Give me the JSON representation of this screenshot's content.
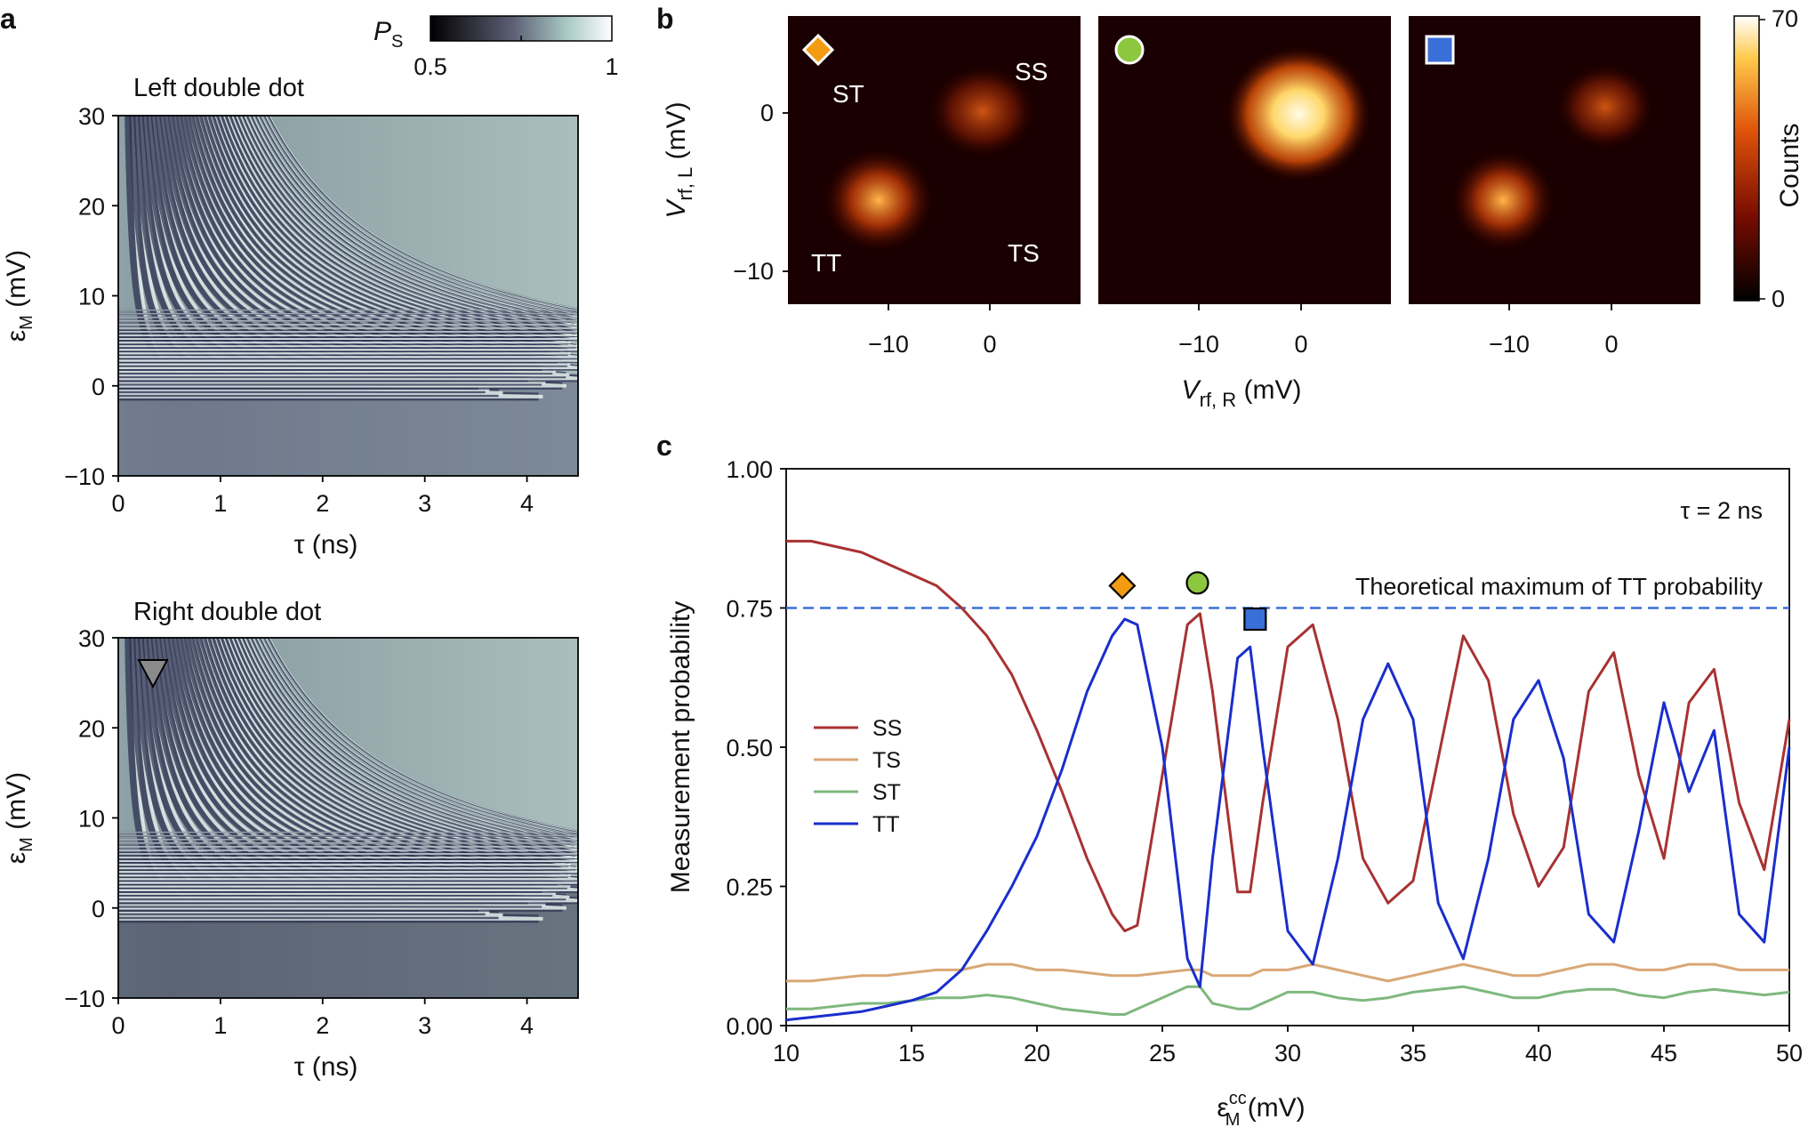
{
  "panel_labels": {
    "a": "a",
    "b": "b",
    "c": "c"
  },
  "colorbar_ps": {
    "symbol": "P",
    "subscript": "S",
    "min_label": "0.5",
    "max_label": "1"
  },
  "panel_a": {
    "top_title": "Left double dot",
    "bottom_title": "Right double dot",
    "xlabel": "τ (ns)",
    "ylabel": "ε",
    "ylabel_sub": "M",
    "ylabel_unit": " (mV)",
    "xticks": [
      "0",
      "1",
      "2",
      "3",
      "4"
    ],
    "yticks": [
      "30",
      "20",
      "10",
      "0",
      "−10"
    ]
  },
  "panel_b": {
    "labels": {
      "ss": "SS",
      "st": "ST",
      "tt": "TT",
      "ts": "TS"
    },
    "ylabel": "V",
    "ylabel_sub": "rf, L",
    "ylabel_unit": " (mV)",
    "xlabel": "V",
    "xlabel_sub": "rf, R",
    "xlabel_unit": " (mV)",
    "yticks": [
      "0",
      "−10"
    ],
    "xticks": [
      "−10",
      "0"
    ],
    "colorbar_label": "Counts",
    "colorbar_ticks": [
      "70",
      "0"
    ],
    "marker_colors": {
      "diamond": "#f39c12",
      "circle": "#8dc63f",
      "square": "#3a6fd8"
    }
  },
  "chart_data": {
    "type": "line",
    "title": "",
    "xlabel": "ε",
    "xlabel_sup": "cc",
    "xlabel_sub": "M",
    "xlabel_unit": " (mV)",
    "ylabel": "Measurement probability",
    "xlim": [
      10,
      50
    ],
    "ylim": [
      0,
      1
    ],
    "xticks": [
      "10",
      "15",
      "20",
      "25",
      "30",
      "35",
      "40",
      "45",
      "50"
    ],
    "yticks": [
      "0.00",
      "0.25",
      "0.50",
      "0.75",
      "1.00"
    ],
    "annotation_tau": "τ = 2 ns",
    "reference_line": {
      "y": 0.75,
      "label": "Theoretical maximum of TT probability",
      "color": "#3a6fd8"
    },
    "markers": [
      {
        "shape": "diamond",
        "x": 23.4,
        "y": 0.79,
        "color": "#f39c12"
      },
      {
        "shape": "circle",
        "x": 26.4,
        "y": 0.795,
        "color": "#8dc63f"
      },
      {
        "shape": "square",
        "x": 28.7,
        "y": 0.73,
        "color": "#3a6fd8"
      }
    ],
    "x": [
      10,
      11,
      12,
      13,
      14,
      15,
      16,
      17,
      18,
      19,
      20,
      21,
      22,
      23,
      23.5,
      24,
      25,
      26,
      26.5,
      27,
      28,
      28.5,
      29,
      30,
      31,
      32,
      33,
      34,
      35,
      36,
      37,
      38,
      39,
      40,
      41,
      42,
      43,
      44,
      45,
      46,
      47,
      48,
      49,
      50
    ],
    "series": [
      {
        "name": "SS",
        "color": "#a83232",
        "values": [
          0.87,
          0.87,
          0.86,
          0.85,
          0.83,
          0.81,
          0.79,
          0.75,
          0.7,
          0.63,
          0.53,
          0.42,
          0.3,
          0.2,
          0.17,
          0.18,
          0.45,
          0.72,
          0.74,
          0.6,
          0.24,
          0.24,
          0.4,
          0.68,
          0.72,
          0.55,
          0.3,
          0.22,
          0.26,
          0.48,
          0.7,
          0.62,
          0.38,
          0.25,
          0.32,
          0.6,
          0.67,
          0.45,
          0.3,
          0.58,
          0.64,
          0.4,
          0.28,
          0.55
        ]
      },
      {
        "name": "TS",
        "color": "#d9a877",
        "values": [
          0.08,
          0.08,
          0.085,
          0.09,
          0.09,
          0.095,
          0.1,
          0.1,
          0.11,
          0.11,
          0.1,
          0.1,
          0.095,
          0.09,
          0.09,
          0.09,
          0.095,
          0.1,
          0.1,
          0.09,
          0.09,
          0.09,
          0.1,
          0.1,
          0.11,
          0.1,
          0.09,
          0.08,
          0.09,
          0.1,
          0.11,
          0.1,
          0.09,
          0.09,
          0.1,
          0.11,
          0.11,
          0.1,
          0.1,
          0.11,
          0.11,
          0.1,
          0.1,
          0.1
        ]
      },
      {
        "name": "ST",
        "color": "#7fb87f",
        "values": [
          0.03,
          0.03,
          0.035,
          0.04,
          0.04,
          0.045,
          0.05,
          0.05,
          0.055,
          0.05,
          0.04,
          0.03,
          0.025,
          0.02,
          0.02,
          0.03,
          0.05,
          0.07,
          0.07,
          0.04,
          0.03,
          0.03,
          0.04,
          0.06,
          0.06,
          0.05,
          0.045,
          0.05,
          0.06,
          0.065,
          0.07,
          0.06,
          0.05,
          0.05,
          0.06,
          0.065,
          0.065,
          0.055,
          0.05,
          0.06,
          0.065,
          0.06,
          0.055,
          0.06
        ]
      },
      {
        "name": "TT",
        "color": "#1a2ecc",
        "values": [
          0.01,
          0.015,
          0.02,
          0.025,
          0.035,
          0.045,
          0.06,
          0.1,
          0.17,
          0.25,
          0.34,
          0.46,
          0.6,
          0.7,
          0.73,
          0.72,
          0.5,
          0.12,
          0.07,
          0.3,
          0.66,
          0.68,
          0.5,
          0.17,
          0.11,
          0.3,
          0.55,
          0.65,
          0.55,
          0.22,
          0.12,
          0.3,
          0.55,
          0.62,
          0.48,
          0.2,
          0.15,
          0.35,
          0.58,
          0.42,
          0.53,
          0.2,
          0.15,
          0.5
        ]
      }
    ],
    "legend": [
      "SS",
      "TS",
      "ST",
      "TT"
    ],
    "legend_position": "left"
  }
}
